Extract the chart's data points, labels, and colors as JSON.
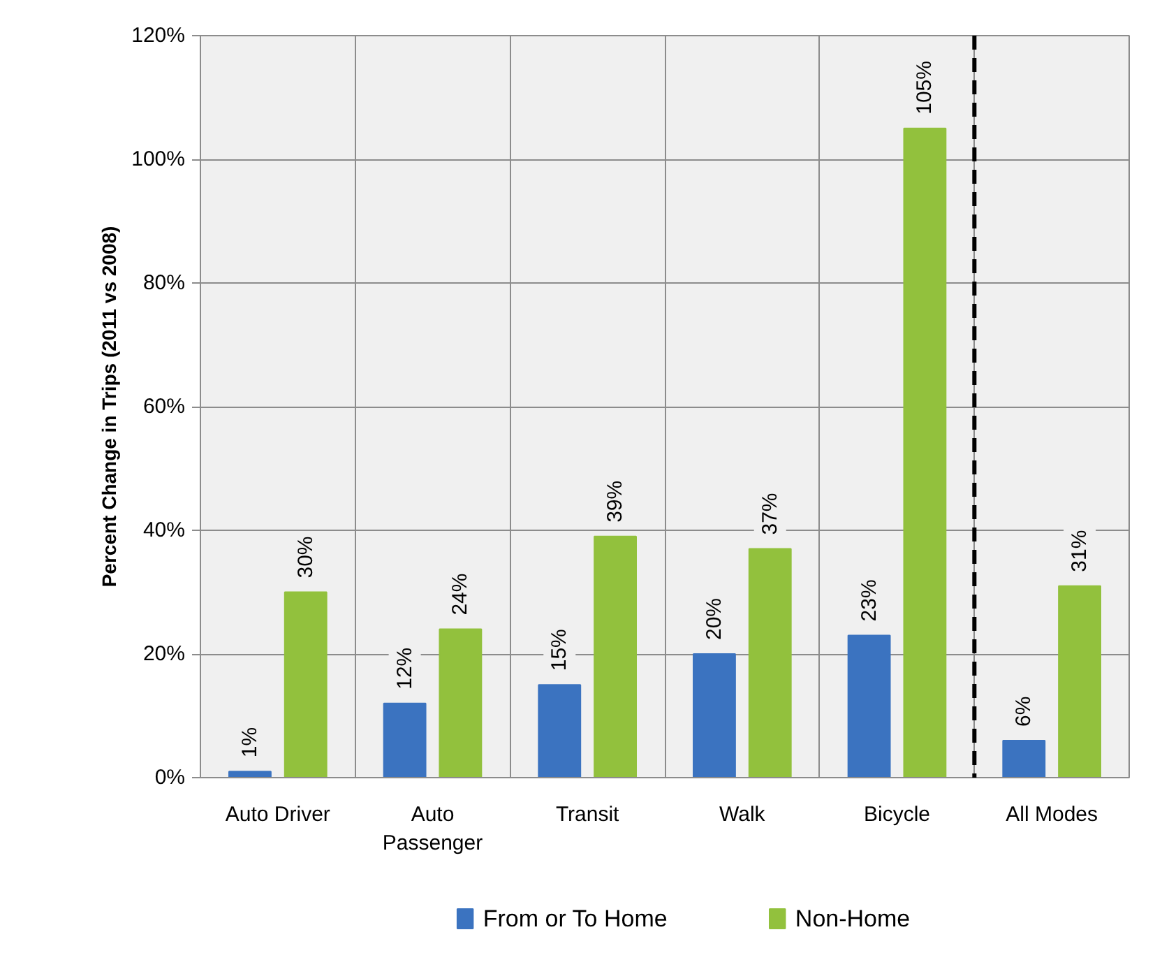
{
  "chart_data": {
    "type": "bar",
    "ylabel": "Percent Change in Trips (2011 vs 2008)",
    "categories": [
      "Auto Driver",
      "Auto Passenger",
      "Transit",
      "Walk",
      "Bicycle",
      "All Modes"
    ],
    "series": [
      {
        "name": "From or To Home",
        "color": "#3b73c0",
        "values": [
          1,
          12,
          15,
          20,
          23,
          6
        ],
        "value_labels": [
          "1%",
          "12%",
          "15%",
          "20%",
          "23%",
          "6%"
        ]
      },
      {
        "name": "Non-Home",
        "color": "#92c13d",
        "values": [
          30,
          24,
          39,
          37,
          105,
          31
        ],
        "value_labels": [
          "30%",
          "24%",
          "39%",
          "37%",
          "105%",
          "31%"
        ]
      }
    ],
    "ylim": [
      0,
      120
    ],
    "yticks": [
      {
        "value": 0,
        "label": "0%"
      },
      {
        "value": 20,
        "label": "20%"
      },
      {
        "value": 40,
        "label": "40%"
      },
      {
        "value": 60,
        "label": "60%"
      },
      {
        "value": 80,
        "label": "80%"
      },
      {
        "value": 100,
        "label": "100%"
      },
      {
        "value": 120,
        "label": "120%"
      }
    ],
    "grid": true,
    "legend": "bottom",
    "ref_lines": [
      {
        "axis": "x",
        "value": "All Modes",
        "color": "#000000",
        "line_style": "dashed"
      }
    ]
  }
}
